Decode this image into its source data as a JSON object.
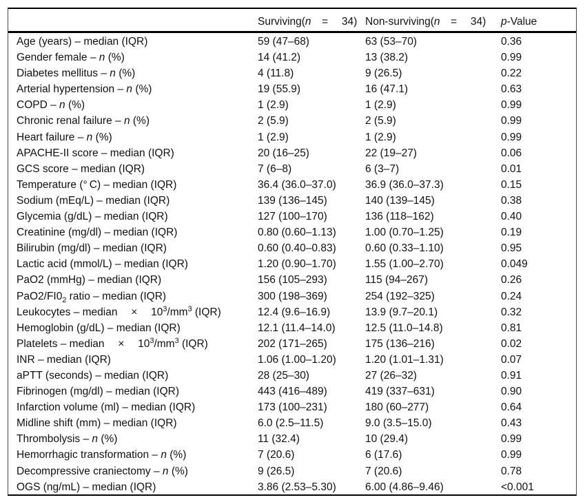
{
  "colors": {
    "text": "#111111",
    "rule": "#000000",
    "side_border": "#4a4a4a",
    "background": "#ffffff"
  },
  "table": {
    "columns": {
      "label": "",
      "surviving": "Surviving(*n* =  34)",
      "non_surviving": "Non-surviving(*n* =  34)",
      "p_value": "*p*-Value"
    },
    "rows": [
      {
        "label": "Age (years) – median (IQR)",
        "surviving": "59 (47–68)",
        "non_surviving": "63 (53–70)",
        "p": "0.36"
      },
      {
        "label": "Gender female – *n* (%)",
        "surviving": "14 (41.2)",
        "non_surviving": "13 (38.2)",
        "p": "0.99"
      },
      {
        "label": "Diabetes mellitus – *n* (%)",
        "surviving": "4 (11.8)",
        "non_surviving": "9 (26.5)",
        "p": "0.22"
      },
      {
        "label": "Arterial hypertension – *n* (%)",
        "surviving": "19 (55.9)",
        "non_surviving": "16 (47.1)",
        "p": "0.63"
      },
      {
        "label": "COPD – *n* (%)",
        "surviving": "1 (2.9)",
        "non_surviving": "1 (2.9)",
        "p": "0.99"
      },
      {
        "label": "Chronic renal failure – *n* (%)",
        "surviving": "2 (5.9)",
        "non_surviving": "2 (5.9)",
        "p": "0.99"
      },
      {
        "label": "Heart failure – *n* (%)",
        "surviving": "1 (2.9)",
        "non_surviving": "1 (2.9)",
        "p": "0.99"
      },
      {
        "label": "APACHE-II score – median (IQR)",
        "surviving": "20 (16–25)",
        "non_surviving": "22 (19–27)",
        "p": "0.06"
      },
      {
        "label": "GCS score – median (IQR)",
        "surviving": "7 (6–8)",
        "non_surviving": "6 (3–7)",
        "p": "0.01"
      },
      {
        "label": "Temperature (° C) – median (IQR)",
        "surviving": "36.4 (36.0–37.0)",
        "non_surviving": "36.9 (36.0–37.3)",
        "p": "0.15"
      },
      {
        "label": "Sodium (mEq/L) – median (IQR)",
        "surviving": "139 (136–145)",
        "non_surviving": "140 (139–145)",
        "p": "0.38"
      },
      {
        "label": "Glycemia (g/dL) – median (IQR)",
        "surviving": "127 (100–170)",
        "non_surviving": "136 (118–162)",
        "p": "0.40"
      },
      {
        "label": "Creatinine (mg/dl) – median (IQR)",
        "surviving": "0.80 (0.60–1.13)",
        "non_surviving": "1.00 (0.70–1.25)",
        "p": "0.19"
      },
      {
        "label": "Bilirubin (mg/dl) – median (IQR)",
        "surviving": "0.60 (0.40–0.83)",
        "non_surviving": "0.60 (0.33–1.10)",
        "p": "0.95"
      },
      {
        "label": "Lactic acid (mmol/L) – median (IQR)",
        "surviving": "1.20 (0.90–1.70)",
        "non_surviving": "1.55 (1.00–2.70)",
        "p": "0.049"
      },
      {
        "label": "PaO2 (mmHg) – median (IQR)",
        "surviving": "156 (105–293)",
        "non_surviving": "115 (94–267)",
        "p": "0.26"
      },
      {
        "label": "PaO2/FI0~2~ ratio – median (IQR)",
        "surviving": "300 (198–369)",
        "non_surviving": "254 (192–325)",
        "p": "0.24"
      },
      {
        "label": "Leukocytes – median  ×  10^3^/mm^3^ (IQR)",
        "surviving": "12.4 (9.6–16.9)",
        "non_surviving": "13.9 (9.7–20.1)",
        "p": "0.32"
      },
      {
        "label": "Hemoglobin (g/dL) – median (IQR)",
        "surviving": "12.1 (11.4–14.0)",
        "non_surviving": "12.5 (11.0–14.8)",
        "p": "0.81"
      },
      {
        "label": "Platelets – median  ×  10^3^/mm^3^ (IQR)",
        "surviving": "202 (171–265)",
        "non_surviving": "175 (136–216)",
        "p": "0.02"
      },
      {
        "label": "INR – median (IQR)",
        "surviving": "1.06 (1.00–1.20)",
        "non_surviving": "1.20 (1.01–1.31)",
        "p": "0.07"
      },
      {
        "label": "aPTT (seconds) – median (IQR)",
        "surviving": "28 (25–30)",
        "non_surviving": "27 (26–32)",
        "p": "0.91"
      },
      {
        "label": "Fibrinogen (mg/dl) – median (IQR)",
        "surviving": "443 (416–489)",
        "non_surviving": "419 (337–631)",
        "p": "0.90"
      },
      {
        "label": "Infarction volume (ml) – median (IQR)",
        "surviving": "173 (100–231)",
        "non_surviving": "180 (60–277)",
        "p": "0.64"
      },
      {
        "label": "Midline shift (mm) – median (IQR)",
        "surviving": "6.0 (2.5–11.5)",
        "non_surviving": "9.0 (3.5–15.0)",
        "p": "0.43"
      },
      {
        "label": "Thrombolysis – *n* (%)",
        "surviving": "11 (32.4)",
        "non_surviving": "10 (29.4)",
        "p": "0.99"
      },
      {
        "label": "Hemorrhagic transformation – *n* (%)",
        "surviving": "7 (20.6)",
        "non_surviving": "6 (17.6)",
        "p": "0.99"
      },
      {
        "label": "Decompressive craniectomy – *n* (%)",
        "surviving": "9 (26.5)",
        "non_surviving": "7 (20.6)",
        "p": "0.78"
      },
      {
        "label": "OGS (ng/mL) – median (IQR)",
        "surviving": "3.86 (2.53–5.30)",
        "non_surviving": "6.00 (4.86–9.46)",
        "p": "<0.001"
      }
    ]
  }
}
